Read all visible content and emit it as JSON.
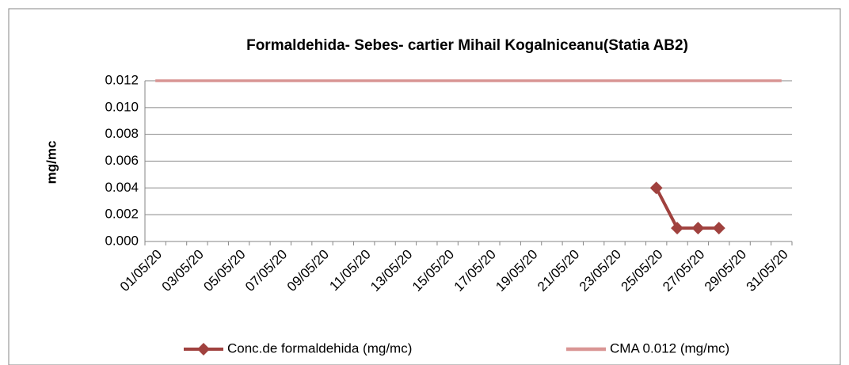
{
  "chart_data": {
    "type": "line",
    "title": "Formaldehida- Sebes-  cartier Mihail Kogalniceanu(Statia AB2)",
    "y_label": "mg/mc",
    "categories": [
      "01/05/20",
      null,
      "03/05/20",
      null,
      "05/05/20",
      null,
      "07/05/20",
      null,
      "09/05/20",
      null,
      "11/05/20",
      null,
      "13/05/20",
      null,
      "15/05/20",
      null,
      "17/05/20",
      null,
      "19/05/20",
      null,
      "21/05/20",
      null,
      "23/05/20",
      null,
      "25/05/20",
      null,
      "27/05/20",
      null,
      "29/05/20",
      null,
      "31/05/20"
    ],
    "series": [
      {
        "name": "Conc.de formaldehida (mg/mc)",
        "color": "#a0413e",
        "marker": "diamond",
        "values": [
          null,
          null,
          null,
          null,
          null,
          null,
          null,
          null,
          null,
          null,
          null,
          null,
          null,
          null,
          null,
          null,
          null,
          null,
          null,
          null,
          null,
          null,
          null,
          null,
          0.004,
          0.001,
          0.001,
          0.001,
          null,
          null,
          null
        ]
      },
      {
        "name": "CMA 0.012 (mg/mc)",
        "color": "#d99594",
        "values": [
          0.012,
          0.012,
          0.012,
          0.012,
          0.012,
          0.012,
          0.012,
          0.012,
          0.012,
          0.012,
          0.012,
          0.012,
          0.012,
          0.012,
          0.012,
          0.012,
          0.012,
          0.012,
          0.012,
          0.012,
          0.012,
          0.012,
          0.012,
          0.012,
          0.012,
          0.012,
          0.012,
          0.012,
          0.012,
          0.012,
          0.012
        ]
      }
    ],
    "ylim": [
      0,
      0.012
    ],
    "yticks": [
      {
        "value": 0,
        "label": "0.000"
      },
      {
        "value": 0.002,
        "label": "0.002"
      },
      {
        "value": 0.004,
        "label": "0.004"
      },
      {
        "value": 0.006,
        "label": "0.006"
      },
      {
        "value": 0.008,
        "label": "0.008"
      },
      {
        "value": 0.01,
        "label": "0.010"
      },
      {
        "value": 0.012,
        "label": "0.012"
      }
    ],
    "grid": true,
    "legend": "bottom"
  }
}
